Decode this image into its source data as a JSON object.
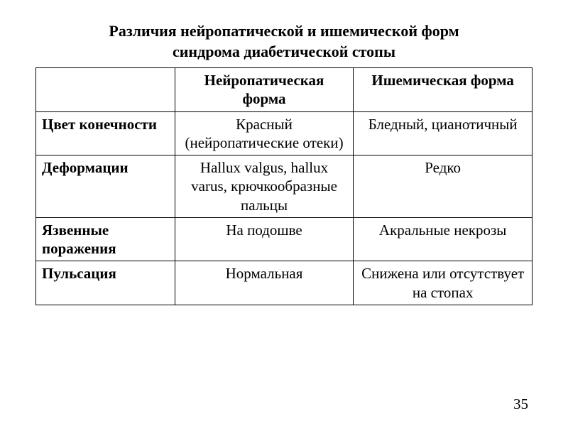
{
  "title_line1": "Различия нейропатической и ишемической форм",
  "title_line2": "синдрома диабетической стопы",
  "table": {
    "columns": [
      "",
      "Нейропатическая форма",
      "Ишемическая форма"
    ],
    "rows": [
      {
        "header": "Цвет конечности",
        "neuropathic": "Красный (нейропатические отеки)",
        "ischemic": "Бледный, цианотичный"
      },
      {
        "header": "Деформации",
        "neuropathic": "Hallux valgus, hallux varus, крючкообразные пальцы",
        "ischemic": "Редко"
      },
      {
        "header": "Язвенные поражения",
        "neuropathic": "На подошве",
        "ischemic": "Акральные некрозы"
      },
      {
        "header": "Пульсация",
        "neuropathic": "Нормальная",
        "ischemic": "Снижена или отсутствует на стопах"
      }
    ],
    "column_widths": [
      "28%",
      "36%",
      "36%"
    ],
    "border_color": "#000000",
    "background_color": "#ffffff",
    "header_fontsize": 21,
    "cell_fontsize": 21,
    "title_fontsize": 22
  },
  "page_number": "35"
}
